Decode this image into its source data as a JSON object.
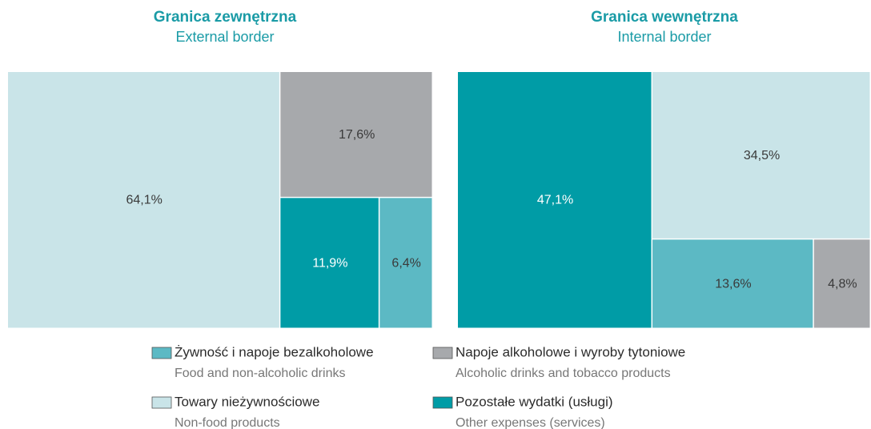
{
  "chart_data": [
    {
      "type": "treemap",
      "title": "Granica zewnętrzna",
      "subtitle": "External border",
      "values": [
        64.1,
        17.6,
        11.9,
        6.4
      ],
      "value_labels": [
        "64,1%",
        "17,6%",
        "11,9%",
        "6,4%"
      ],
      "colors": [
        "#c9e4e8",
        "#a7a9ac",
        "#009ca6",
        "#5cb9c4"
      ]
    },
    {
      "type": "treemap",
      "title": "Granica wewnętrzna",
      "subtitle": "Internal border",
      "values": [
        47.1,
        34.5,
        13.6,
        4.8
      ],
      "value_labels": [
        "47,1%",
        "34,5%",
        "13,6%",
        "4,8%"
      ],
      "colors": [
        "#009ca6",
        "#c9e4e8",
        "#5cb9c4",
        "#a7a9ac"
      ]
    }
  ],
  "legend": [
    {
      "label": "Żywność i napoje bezalkoholowe",
      "sublabel": "Food and non-alcoholic drinks",
      "color": "#5cb9c4"
    },
    {
      "label": "Napoje alkoholowe i wyroby tytoniowe",
      "sublabel": "Alcoholic drinks and tobacco products",
      "color": "#a7a9ac"
    },
    {
      "label": "Towary nieżywnościowe",
      "sublabel": "Non-food products",
      "color": "#c9e4e8"
    },
    {
      "label": "Pozostałe wydatki (usługi)",
      "sublabel": "Other expenses (services)",
      "color": "#009ca6"
    }
  ]
}
